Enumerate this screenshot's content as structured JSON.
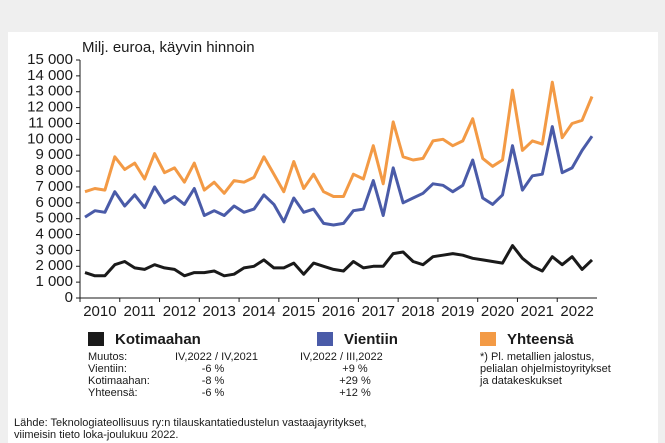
{
  "chart_data": {
    "type": "line",
    "axis_title": "Milj. euroa, käyvin hinnoin",
    "x_labels": [
      2010,
      2011,
      2012,
      2013,
      2014,
      2015,
      2016,
      2017,
      2018,
      2019,
      2020,
      2021,
      2022
    ],
    "ylim": [
      0,
      15000
    ],
    "yticks": [
      0,
      {
        "value": 1000,
        "label": "1 000"
      },
      {
        "value": 2000,
        "label": "2 000"
      },
      {
        "value": 3000,
        "label": "3 000"
      },
      {
        "value": 4000,
        "label": "4 000"
      },
      {
        "value": 5000,
        "label": "5 000"
      },
      {
        "value": 6000,
        "label": "6 000"
      },
      {
        "value": 7000,
        "label": "7 000"
      },
      {
        "value": 8000,
        "label": "8 000"
      },
      {
        "value": 9000,
        "label": "9 000"
      },
      {
        "value": 10000,
        "label": "10 000"
      },
      {
        "value": 11000,
        "label": "11 000"
      },
      {
        "value": 12000,
        "label": "12 000"
      },
      {
        "value": 13000,
        "label": "13 000"
      },
      {
        "value": 14000,
        "label": "14 000"
      },
      {
        "value": 15000,
        "label": "15 000"
      }
    ],
    "series": [
      {
        "name": "Kotimaahan",
        "color": "#1a1a1a",
        "values": [
          1600,
          1400,
          1400,
          2100,
          2300,
          1900,
          1800,
          2100,
          1900,
          1800,
          1400,
          1600,
          1600,
          1700,
          1400,
          1500,
          1900,
          2000,
          2400,
          1900,
          1900,
          2200,
          1500,
          2200,
          2000,
          1800,
          1700,
          2300,
          1900,
          2000,
          2000,
          2800,
          2900,
          2300,
          2100,
          2600,
          2700,
          2800,
          2700,
          2500,
          2400,
          2300,
          2200,
          3300,
          2500,
          2000,
          1700,
          2600,
          2100,
          2600,
          1800,
          2400
        ]
      },
      {
        "name": "Vientiin",
        "color": "#4a5ba8",
        "values": [
          5100,
          5500,
          5400,
          6700,
          5800,
          6500,
          5700,
          7000,
          6000,
          6400,
          5900,
          6900,
          5200,
          5500,
          5200,
          5800,
          5400,
          5600,
          6500,
          5900,
          4800,
          6300,
          5400,
          5600,
          4700,
          4600,
          4700,
          5500,
          5600,
          7400,
          5200,
          8200,
          6000,
          6300,
          6600,
          7200,
          7100,
          6700,
          7100,
          8700,
          6300,
          5900,
          6500,
          9600,
          6800,
          7700,
          7800,
          10800,
          7900,
          8200,
          9300,
          10200
        ]
      },
      {
        "name": "Yhteensä",
        "color": "#f39a45",
        "values": [
          6700,
          6900,
          6800,
          8900,
          8100,
          8500,
          7500,
          9100,
          7900,
          8200,
          7300,
          8500,
          6800,
          7300,
          6600,
          7400,
          7300,
          7600,
          8900,
          7800,
          6700,
          8600,
          6900,
          7800,
          6700,
          6400,
          6400,
          7800,
          7500,
          9600,
          7200,
          11100,
          8900,
          8700,
          8800,
          9900,
          10000,
          9600,
          9900,
          11300,
          8800,
          8300,
          8700,
          13100,
          9300,
          9900,
          9700,
          13600,
          10100,
          11000,
          11200,
          12700
        ]
      }
    ]
  },
  "changes": {
    "heading": "Muutos:",
    "columns": [
      "IV,2022 / IV,2021",
      "IV,2022 / III,2022"
    ],
    "rows": [
      [
        "Vientiin:",
        "-6 %",
        "+9 %"
      ],
      [
        "Kotimaahan:",
        "-8 %",
        "+29 %"
      ],
      [
        "Yhteensä:",
        "-6 %",
        "+12 %"
      ]
    ]
  },
  "footnote": [
    "*) Pl. metallien jalostus,",
    "pelialan ohjelmistoyritykset",
    "ja datakeskukset"
  ],
  "source": [
    "Lähde: Teknologiateollisuus ry:n tilauskantatiedustelun vastaajayritykset,",
    "viimeisin tieto loka-joulukuu 2022."
  ]
}
